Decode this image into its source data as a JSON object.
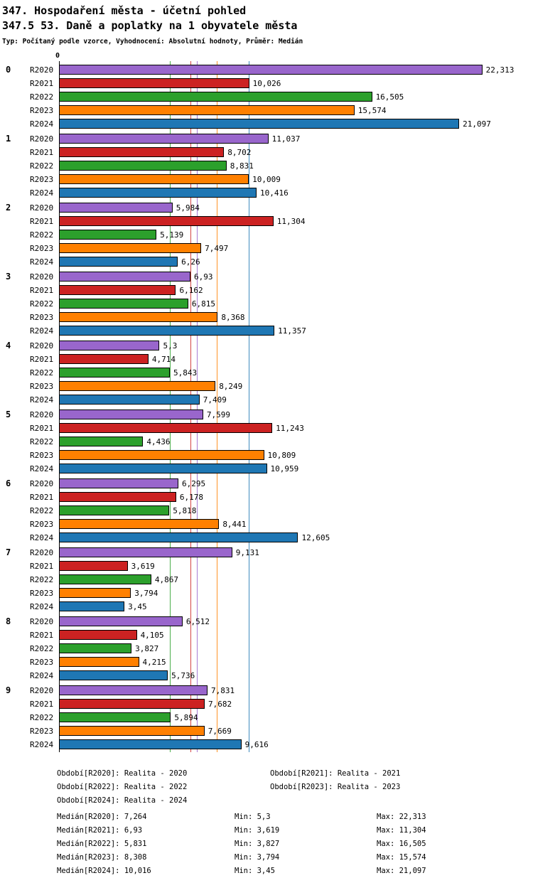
{
  "header": {
    "title1": "347. Hospodaření města - účetní pohled",
    "title2": "347.5 53. Daně a poplatky na 1 obyvatele města",
    "subtitle": "Typ: Počítaný podle vzorce, Vyhodnocení: Absolutní hodnoty, Průměr: Medián"
  },
  "chart_data": {
    "type": "bar",
    "orientation": "horizontal",
    "title": "347.5 53. Daně a poplatky na 1 obyvatele města",
    "axis_origin_label": "0",
    "xlim": [
      0,
      24.8
    ],
    "grid": "median-reference-lines",
    "categories": [
      "0",
      "1",
      "2",
      "3",
      "4",
      "5",
      "6",
      "7",
      "8",
      "9"
    ],
    "series": [
      {
        "name": "R2020",
        "color": "#9966CC",
        "median": 7.264,
        "values": [
          22.313,
          11.037,
          5.984,
          6.93,
          5.3,
          7.599,
          6.295,
          9.131,
          6.512,
          7.831
        ],
        "labels": [
          "22,313",
          "11,037",
          "5,984",
          "6,93",
          "5,3",
          "7,599",
          "6,295",
          "9,131",
          "6,512",
          "7,831"
        ]
      },
      {
        "name": "R2021",
        "color": "#CC2222",
        "median": 6.93,
        "values": [
          10.026,
          8.702,
          11.304,
          6.162,
          4.714,
          11.243,
          6.178,
          3.619,
          4.105,
          7.682
        ],
        "labels": [
          "10,026",
          "8,702",
          "11,304",
          "6,162",
          "4,714",
          "11,243",
          "6,178",
          "3,619",
          "4,105",
          "7,682"
        ]
      },
      {
        "name": "R2022",
        "color": "#2CA02C",
        "median": 5.831,
        "values": [
          16.505,
          8.831,
          5.139,
          6.815,
          5.843,
          4.436,
          5.818,
          4.867,
          3.827,
          5.894
        ],
        "labels": [
          "16,505",
          "8,831",
          "5,139",
          "6,815",
          "5,843",
          "4,436",
          "5,818",
          "4,867",
          "3,827",
          "5,894"
        ]
      },
      {
        "name": "R2023",
        "color": "#FF8000",
        "median": 8.308,
        "values": [
          15.574,
          10.009,
          7.497,
          8.368,
          8.249,
          10.809,
          8.441,
          3.794,
          4.215,
          7.669
        ],
        "labels": [
          "15,574",
          "10,009",
          "7,497",
          "8,368",
          "8,249",
          "10,809",
          "8,441",
          "3,794",
          "4,215",
          "7,669"
        ]
      },
      {
        "name": "R2024",
        "color": "#1F77B4",
        "median": 10.016,
        "values": [
          21.097,
          10.416,
          6.26,
          11.357,
          7.409,
          10.959,
          12.605,
          3.45,
          5.736,
          9.616
        ],
        "labels": [
          "21,097",
          "10,416",
          "6,26",
          "11,357",
          "7,409",
          "10,959",
          "12,605",
          "3,45",
          "5,736",
          "9,616"
        ]
      }
    ]
  },
  "legend": {
    "periods": [
      [
        "Období[R2020]: Realita - 2020",
        "Období[R2021]: Realita - 2021"
      ],
      [
        "Období[R2022]: Realita - 2022",
        "Období[R2023]: Realita - 2023"
      ],
      [
        "Období[R2024]: Realita - 2024",
        ""
      ]
    ],
    "stats": [
      [
        "Medián[R2020]: 7,264",
        "Min: 5,3",
        "Max: 22,313"
      ],
      [
        "Medián[R2021]: 6,93",
        "Min: 3,619",
        "Max: 11,304"
      ],
      [
        "Medián[R2022]: 5,831",
        "Min: 3,827",
        "Max: 16,505"
      ],
      [
        "Medián[R2023]: 8,308",
        "Min: 3,794",
        "Max: 15,574"
      ],
      [
        "Medián[R2024]: 10,016",
        "Min: 3,45",
        "Max: 21,097"
      ]
    ]
  }
}
